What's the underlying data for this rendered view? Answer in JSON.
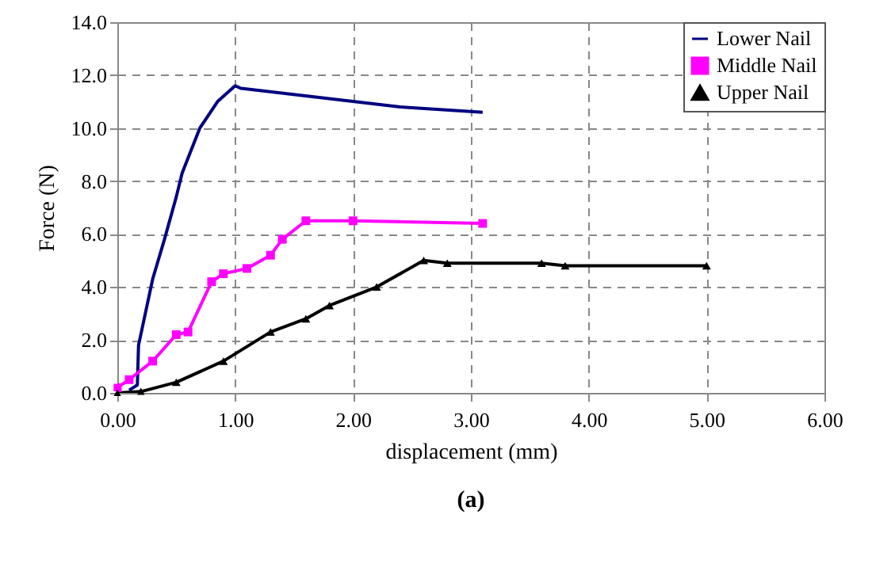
{
  "chart_data": {
    "type": "line",
    "xlabel": "displacement (mm)",
    "ylabel": "Force (N)",
    "annotations": [
      "(a)"
    ],
    "xlim": [
      0,
      6
    ],
    "ylim": [
      0,
      14
    ],
    "xticks": [
      {
        "value": 0,
        "label": "0.00"
      },
      {
        "value": 1,
        "label": "1.00"
      },
      {
        "value": 2,
        "label": "2.00"
      },
      {
        "value": 3,
        "label": "3.00"
      },
      {
        "value": 4,
        "label": "4.00"
      },
      {
        "value": 5,
        "label": "5.00"
      },
      {
        "value": 6,
        "label": "6.00"
      }
    ],
    "yticks": [
      {
        "value": 0,
        "label": "0.0"
      },
      {
        "value": 2,
        "label": "2.0"
      },
      {
        "value": 4,
        "label": "4.0"
      },
      {
        "value": 6,
        "label": "6.0"
      },
      {
        "value": 8,
        "label": "8.0"
      },
      {
        "value": 10,
        "label": "10.0"
      },
      {
        "value": 12,
        "label": "12.0"
      },
      {
        "value": 14,
        "label": "14.0"
      }
    ],
    "grid": true,
    "legend": "top right",
    "series": [
      {
        "name": "Lower Nail",
        "color": "#000080",
        "marker": "none",
        "x": [
          0.1,
          0.17,
          0.18,
          0.3,
          0.4,
          0.5,
          0.55,
          0.7,
          0.85,
          1.0,
          1.05,
          2.4,
          3.1
        ],
        "values": [
          0.1,
          0.3,
          1.8,
          4.3,
          5.8,
          7.4,
          8.3,
          10.0,
          11.0,
          11.6,
          11.5,
          10.8,
          10.6
        ]
      },
      {
        "name": "Middle Nail",
        "color": "#ff00ff",
        "marker": "square",
        "x": [
          0,
          0.1,
          0.3,
          0.5,
          0.6,
          0.8,
          0.9,
          1.1,
          1.3,
          1.4,
          1.6,
          2.0,
          3.1
        ],
        "values": [
          0.2,
          0.5,
          1.2,
          2.2,
          2.3,
          4.2,
          4.5,
          4.7,
          5.2,
          5.8,
          6.5,
          6.5,
          6.4
        ]
      },
      {
        "name": "Upper Nail",
        "color": "#000000",
        "marker": "triangle",
        "x": [
          0,
          0.2,
          0.5,
          0.9,
          1.3,
          1.6,
          1.8,
          2.2,
          2.6,
          2.8,
          3.6,
          3.8,
          5.0
        ],
        "values": [
          0,
          0.05,
          0.4,
          1.2,
          2.3,
          2.8,
          3.3,
          4.0,
          5.0,
          4.9,
          4.9,
          4.8,
          4.8
        ]
      }
    ]
  }
}
